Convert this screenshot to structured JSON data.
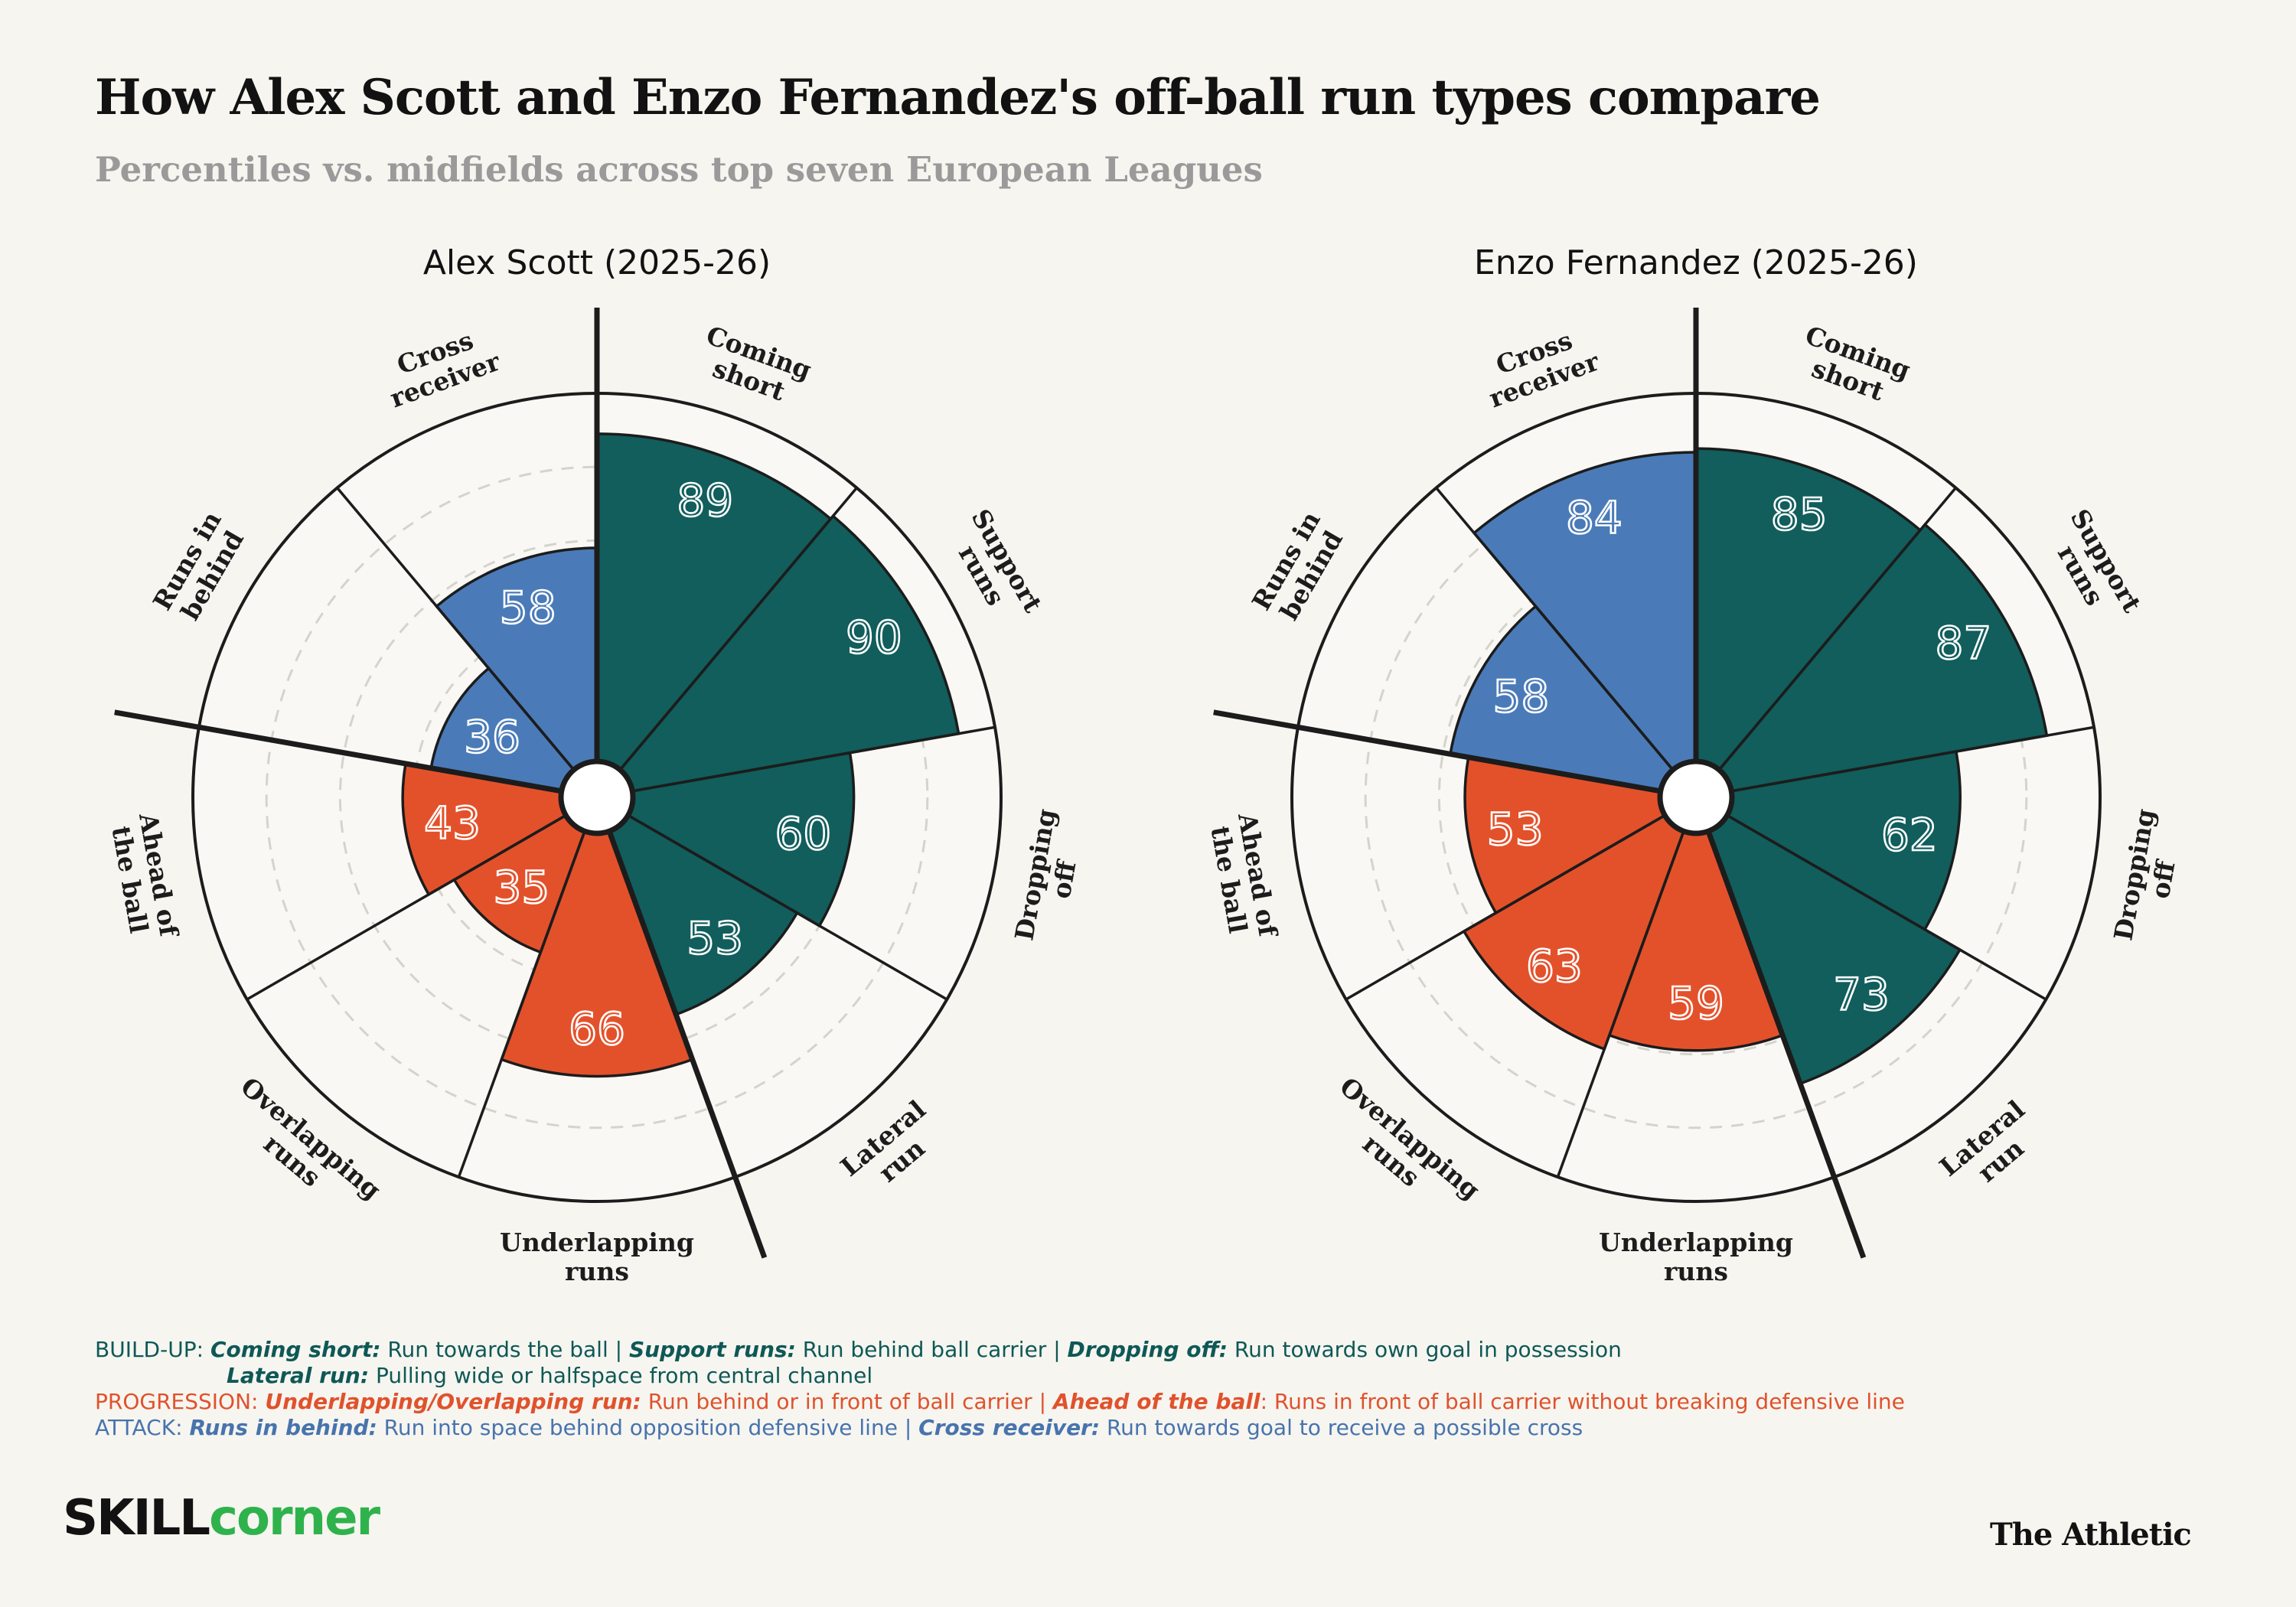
{
  "title": "How Alex Scott and Enzo Fernandez's off-ball run types compare",
  "subtitle": "Percentiles vs. midfields across top seven European Leagues",
  "colors": {
    "build_up": "#115e5c",
    "progression": "#e3512b",
    "attack": "#4a7bb8",
    "background": "#f6f5f0",
    "gridline": "#d5d3cc",
    "outline": "#1c1c1c"
  },
  "chart_data": [
    {
      "type": "polar-bar",
      "title": "Alex Scott (2025-26)",
      "ylim": [
        0,
        100
      ],
      "grid": true,
      "categories": [
        "Coming short",
        "Support runs",
        "Dropping off",
        "Lateral run",
        "Underlapping runs",
        "Overlapping runs",
        "Ahead of the ball",
        "Runs in behind",
        "Cross receiver"
      ],
      "category_lines": [
        [
          "Coming",
          "short"
        ],
        [
          "Support",
          "runs"
        ],
        [
          "Dropping",
          "off"
        ],
        [
          "Lateral",
          "run"
        ],
        [
          "Underlapping",
          "runs"
        ],
        [
          "Overlapping",
          "runs"
        ],
        [
          "Ahead of",
          "the ball"
        ],
        [
          "Runs in",
          "behind"
        ],
        [
          "Cross",
          "receiver"
        ]
      ],
      "groups": [
        "build_up",
        "build_up",
        "build_up",
        "build_up",
        "progression",
        "progression",
        "progression",
        "attack",
        "attack"
      ],
      "values": [
        89,
        90,
        60,
        53,
        66,
        35,
        43,
        36,
        58
      ]
    },
    {
      "type": "polar-bar",
      "title": "Enzo Fernandez (2025-26)",
      "ylim": [
        0,
        100
      ],
      "grid": true,
      "categories": [
        "Coming short",
        "Support runs",
        "Dropping off",
        "Lateral run",
        "Underlapping runs",
        "Overlapping runs",
        "Ahead of the ball",
        "Runs in behind",
        "Cross receiver"
      ],
      "category_lines": [
        [
          "Coming",
          "short"
        ],
        [
          "Support",
          "runs"
        ],
        [
          "Dropping",
          "off"
        ],
        [
          "Lateral",
          "run"
        ],
        [
          "Underlapping",
          "runs"
        ],
        [
          "Overlapping",
          "runs"
        ],
        [
          "Ahead of",
          "the ball"
        ],
        [
          "Runs in",
          "behind"
        ],
        [
          "Cross",
          "receiver"
        ]
      ],
      "groups": [
        "build_up",
        "build_up",
        "build_up",
        "build_up",
        "progression",
        "progression",
        "progression",
        "attack",
        "attack"
      ],
      "values": [
        85,
        87,
        62,
        73,
        59,
        63,
        53,
        58,
        84
      ]
    }
  ],
  "legend": {
    "build_up_prefix": "BUILD-UP: ",
    "coming_short_term": "Coming short:",
    "coming_short_desc": " Run towards the ball | ",
    "support_runs_term": "Support runs:",
    "support_runs_desc": " Run behind ball carrier | ",
    "dropping_off_term": "Dropping off:",
    "dropping_off_desc": " Run towards own goal in possession",
    "lateral_run_term": "Lateral run:",
    "lateral_run_desc": " Pulling wide or halfspace from central channel",
    "progression_prefix": "PROGRESSION: ",
    "under_over_term": "Underlapping/Overlapping run:",
    "under_over_desc": " Run behind or in front of ball carrier | ",
    "ahead_term": "Ahead of the ball",
    "ahead_desc": ": Runs in front of ball carrier without breaking defensive line",
    "attack_prefix": "ATTACK: ",
    "runs_behind_term": "Runs in behind:",
    "runs_behind_desc": " Run into space behind opposition defensive line | ",
    "cross_term": "Cross receiver:",
    "cross_desc": " Run towards goal to receive a possible cross"
  },
  "logos": {
    "skill": "SKILL",
    "corner": "corner",
    "athletic": "The Athletic"
  }
}
